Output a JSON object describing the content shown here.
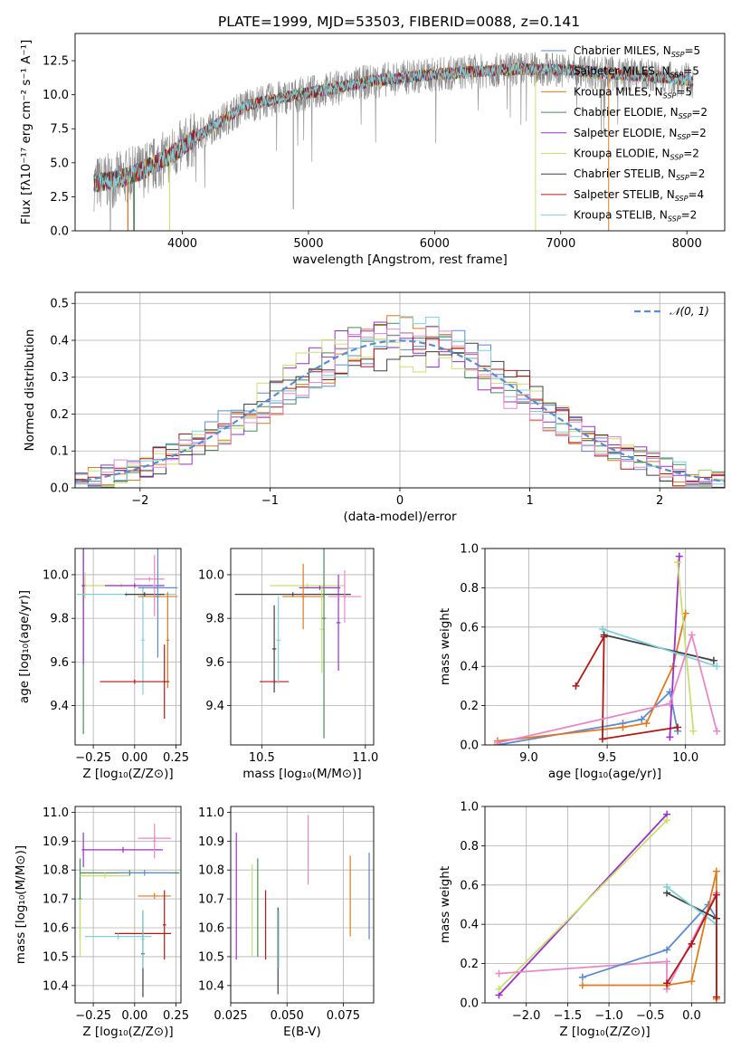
{
  "figure": {
    "title": "PLATE=1999, MJD=53503, FIBERID=0088, z=0.141"
  },
  "chart_data": [
    {
      "id": "spectrum",
      "type": "line",
      "title": "PLATE=1999, MJD=53503, FIBERID=0088, z=0.141",
      "xlabel": "wavelength [Angstrom, rest frame]",
      "ylabel": "Flux [fλ10⁻¹⁷ erg cm⁻² s⁻¹ A⁻¹]",
      "xlim": [
        3150,
        8300
      ],
      "ylim": [
        0,
        14.5
      ],
      "xticks": [
        4000,
        5000,
        6000,
        7000,
        8000
      ],
      "yticks": [
        0.0,
        2.5,
        5.0,
        7.5,
        10.0,
        12.5
      ],
      "grid": false,
      "legend_position": "top-right",
      "continuum": [
        [
          3300,
          3.5
        ],
        [
          3500,
          3.8
        ],
        [
          3700,
          4.5
        ],
        [
          3900,
          5.5
        ],
        [
          4050,
          6.5
        ],
        [
          4300,
          8.0
        ],
        [
          4500,
          9.2
        ],
        [
          4800,
          9.8
        ],
        [
          5100,
          10.3
        ],
        [
          5500,
          11.0
        ],
        [
          5900,
          11.4
        ],
        [
          6300,
          11.7
        ],
        [
          6700,
          11.9
        ],
        [
          7100,
          11.8
        ],
        [
          7500,
          11.5
        ],
        [
          7900,
          11.2
        ],
        [
          8050,
          11.0
        ]
      ],
      "series": [
        {
          "name": "Chabrier MILES, N_SSP=5",
          "color": "#5b8bd0"
        },
        {
          "name": "Salpeter MILES, N_SSP=5",
          "color": "#8a8a8a"
        },
        {
          "name": "Kroupa MILES, N_SSP=5",
          "color": "#e07a1f"
        },
        {
          "name": "Chabrier ELODIE, N_SSP=2",
          "color": "#4a8a5a"
        },
        {
          "name": "Salpeter ELODIE, N_SSP=2",
          "color": "#9b30c8"
        },
        {
          "name": "Kroupa ELODIE, N_SSP=2",
          "color": "#c8e070"
        },
        {
          "name": "Chabrier STELIB, N_SSP=2",
          "color": "#404040"
        },
        {
          "name": "Salpeter STELIB, N_SSP=4",
          "color": "#b01818"
        },
        {
          "name": "Kroupa STELIB, N_SSP=2",
          "color": "#80d0d8"
        }
      ]
    },
    {
      "id": "residuals",
      "type": "line",
      "xlabel": "(data-model)/error",
      "ylabel": "Normed distribution",
      "xlim": [
        -2.5,
        2.5
      ],
      "ylim": [
        0,
        0.53
      ],
      "xticks": [
        -2,
        -1,
        0,
        1,
        2
      ],
      "yticks": [
        0.0,
        0.1,
        0.2,
        0.3,
        0.4,
        0.5
      ],
      "grid": true,
      "legend": "𝒩(0, 1)",
      "legend_position": "top-right",
      "histogram_colors": [
        "#5b8bd0",
        "#e07a1f",
        "#4a8a5a",
        "#9b30c8",
        "#c8e070",
        "#404040",
        "#b01818",
        "#80d0d8",
        "#e888c8"
      ]
    },
    {
      "id": "age_vs_Z",
      "type": "scatter",
      "xlabel": "Z [log₁₀(Z/Z⊙)]",
      "ylabel": "age  [log₁₀(age/yr)]",
      "xlim": [
        -0.36,
        0.28
      ],
      "ylim": [
        9.22,
        10.12
      ],
      "xticks": [
        -0.25,
        0.0,
        0.25
      ],
      "xticklabels": [
        "−0.25",
        "0.00",
        "0.25"
      ],
      "yticks": [
        9.4,
        9.6,
        9.8,
        10.0
      ],
      "grid": true,
      "points": [
        {
          "x": -0.3,
          "y": 9.95,
          "xerr": 0.01,
          "yerr": 0.06,
          "c": "#c8e070"
        },
        {
          "x": -0.31,
          "y": 9.95,
          "xerr": 0.01,
          "yerr": 0.68,
          "c": "#4a8a5a"
        },
        {
          "x": -0.31,
          "y": 9.95,
          "xerr": 0.01,
          "yerr": 0.36,
          "c": "#9b30c8"
        },
        {
          "x": -0.08,
          "y": 9.95,
          "xerr": 0.22,
          "yerr": 0.01,
          "c": "#c8e070"
        },
        {
          "x": 0.0,
          "y": 9.95,
          "xerr": 0.18,
          "yerr": 0.01,
          "c": "#9b30c8"
        },
        {
          "x": -0.05,
          "y": 9.91,
          "xerr": 0.3,
          "yerr": 0.01,
          "c": "#80d0d8"
        },
        {
          "x": 0.05,
          "y": 9.7,
          "xerr": 0.01,
          "yerr": 0.25,
          "c": "#80d0d8"
        },
        {
          "x": 0.06,
          "y": 9.91,
          "xerr": 0.12,
          "yerr": 0.01,
          "c": "#404040"
        },
        {
          "x": 0.09,
          "y": 9.98,
          "xerr": 0.09,
          "yerr": 0.01,
          "c": "#e888c8"
        },
        {
          "x": 0.12,
          "y": 9.95,
          "xerr": 0.01,
          "yerr": 0.14,
          "c": "#e888c8"
        },
        {
          "x": 0.14,
          "y": 9.94,
          "xerr": 0.12,
          "yerr": 0.01,
          "c": "#5b8bd0"
        },
        {
          "x": 0.14,
          "y": 9.9,
          "xerr": 0.12,
          "yerr": 0.01,
          "c": "#e07a1f"
        },
        {
          "x": 0.14,
          "y": 9.9,
          "xerr": 0.01,
          "yerr": 0.28,
          "c": "#5b8bd0"
        },
        {
          "x": 0.2,
          "y": 9.7,
          "xerr": 0.01,
          "yerr": 0.22,
          "c": "#e07a1f"
        },
        {
          "x": 0.0,
          "y": 9.51,
          "xerr": 0.21,
          "yerr": 0.01,
          "c": "#b01818"
        },
        {
          "x": 0.18,
          "y": 9.51,
          "xerr": 0.01,
          "yerr": 0.17,
          "c": "#b01818"
        }
      ]
    },
    {
      "id": "age_vs_mass",
      "type": "scatter",
      "xlabel": "mass [log₁₀(M/M⊙)]",
      "ylabel": "",
      "xlim": [
        10.35,
        11.04
      ],
      "ylim": [
        9.22,
        10.12
      ],
      "xticks": [
        10.5,
        11.0
      ],
      "yticks": [
        9.4,
        9.6,
        9.8,
        10.0
      ],
      "grid": true,
      "points": [
        {
          "x": 10.65,
          "y": 9.91,
          "xerr": 0.28,
          "yerr": 0.01,
          "c": "#404040"
        },
        {
          "x": 10.72,
          "y": 9.95,
          "xerr": 0.18,
          "yerr": 0.01,
          "c": "#c8e070"
        },
        {
          "x": 10.78,
          "y": 9.94,
          "xerr": 0.1,
          "yerr": 0.01,
          "c": "#9b30c8"
        },
        {
          "x": 10.7,
          "y": 9.9,
          "xerr": 0.1,
          "yerr": 0.01,
          "c": "#e07a1f"
        },
        {
          "x": 10.56,
          "y": 9.66,
          "xerr": 0.01,
          "yerr": 0.2,
          "c": "#404040"
        },
        {
          "x": 10.56,
          "y": 9.51,
          "xerr": 0.07,
          "yerr": 0.01,
          "c": "#b01818"
        },
        {
          "x": 10.58,
          "y": 9.7,
          "xerr": 0.01,
          "yerr": 0.2,
          "c": "#80d0d8"
        },
        {
          "x": 10.7,
          "y": 9.9,
          "xerr": 0.01,
          "yerr": 0.15,
          "c": "#e07a1f"
        },
        {
          "x": 10.79,
          "y": 9.75,
          "xerr": 0.01,
          "yerr": 0.2,
          "c": "#c8e070"
        },
        {
          "x": 10.8,
          "y": 9.8,
          "xerr": 0.01,
          "yerr": 0.55,
          "c": "#4a8a5a"
        },
        {
          "x": 10.87,
          "y": 9.78,
          "xerr": 0.01,
          "yerr": 0.22,
          "c": "#9b30c8"
        },
        {
          "x": 10.9,
          "y": 9.9,
          "xerr": 0.08,
          "yerr": 0.01,
          "c": "#e888c8"
        },
        {
          "x": 10.9,
          "y": 9.9,
          "xerr": 0.01,
          "yerr": 0.12,
          "c": "#e888c8"
        }
      ]
    },
    {
      "id": "weight_vs_age",
      "type": "line",
      "xlabel": "age  [log₁₀(age/yr)]",
      "ylabel": "mass weight",
      "xlim": [
        8.72,
        10.25
      ],
      "ylim": [
        0,
        1.0
      ],
      "xticks": [
        9.0,
        9.5,
        10.0
      ],
      "yticks": [
        0.0,
        0.2,
        0.4,
        0.6,
        0.8,
        1.0
      ],
      "grid": true,
      "series": [
        {
          "c": "#5b8bd0",
          "x": [
            8.8,
            9.6,
            9.72,
            9.9,
            9.95
          ],
          "y": [
            0.0,
            0.11,
            0.13,
            0.27,
            0.07
          ]
        },
        {
          "c": "#e07a1f",
          "x": [
            8.8,
            9.6,
            9.75,
            9.92,
            10.0
          ],
          "y": [
            0.02,
            0.09,
            0.11,
            0.4,
            0.67
          ]
        },
        {
          "c": "#9b30c8",
          "x": [
            9.9,
            9.96
          ],
          "y": [
            0.04,
            0.96
          ]
        },
        {
          "c": "#c8e070",
          "x": [
            9.95,
            10.05
          ],
          "y": [
            0.93,
            0.07
          ]
        },
        {
          "c": "#404040",
          "x": [
            9.48,
            10.18
          ],
          "y": [
            0.56,
            0.43
          ]
        },
        {
          "c": "#b01818",
          "x": [
            9.3,
            9.48,
            9.47,
            9.95
          ],
          "y": [
            0.3,
            0.55,
            0.03,
            0.09
          ]
        },
        {
          "c": "#80d0d8",
          "x": [
            9.47,
            10.2
          ],
          "y": [
            0.59,
            0.4
          ]
        },
        {
          "c": "#e888c8",
          "x": [
            8.8,
            9.9,
            10.04,
            10.2
          ],
          "y": [
            0.01,
            0.21,
            0.56,
            0.07
          ]
        }
      ]
    },
    {
      "id": "mass_vs_Z",
      "type": "scatter",
      "xlabel": "Z [log₁₀(Z/Z⊙)]",
      "ylabel": "mass [log₁₀(M/M⊙)]",
      "xlim": [
        -0.36,
        0.28
      ],
      "ylim": [
        10.34,
        11.02
      ],
      "xticks": [
        -0.25,
        0.0,
        0.25
      ],
      "xticklabels": [
        "−0.25",
        "0.00",
        "0.25"
      ],
      "yticks": [
        10.4,
        10.5,
        10.6,
        10.7,
        10.8,
        10.9,
        11.0
      ],
      "grid": true,
      "points": [
        {
          "x": -0.31,
          "y": 10.87,
          "xerr": 0.01,
          "yerr": 0.06,
          "c": "#9b30c8"
        },
        {
          "x": -0.07,
          "y": 10.87,
          "xerr": 0.24,
          "yerr": 0.01,
          "c": "#9b30c8"
        },
        {
          "x": -0.33,
          "y": 10.7,
          "xerr": 0.01,
          "yerr": 0.14,
          "c": "#4a8a5a"
        },
        {
          "x": -0.03,
          "y": 10.79,
          "xerr": 0.3,
          "yerr": 0.01,
          "c": "#4a8a5a"
        },
        {
          "x": -0.18,
          "y": 10.78,
          "xerr": 0.15,
          "yerr": 0.01,
          "c": "#c8e070"
        },
        {
          "x": -0.33,
          "y": 10.6,
          "xerr": 0.01,
          "yerr": 0.1,
          "c": "#c8e070"
        },
        {
          "x": 0.06,
          "y": 10.79,
          "xerr": 0.16,
          "yerr": 0.01,
          "c": "#5b8bd0"
        },
        {
          "x": 0.12,
          "y": 10.91,
          "xerr": 0.1,
          "yerr": 0.01,
          "c": "#e888c8"
        },
        {
          "x": 0.12,
          "y": 10.9,
          "xerr": 0.01,
          "yerr": 0.06,
          "c": "#e888c8"
        },
        {
          "x": 0.12,
          "y": 10.71,
          "xerr": 0.1,
          "yerr": 0.01,
          "c": "#e07a1f"
        },
        {
          "x": 0.18,
          "y": 10.61,
          "xerr": 0.01,
          "yerr": 0.12,
          "c": "#b01818"
        },
        {
          "x": 0.05,
          "y": 10.58,
          "xerr": 0.17,
          "yerr": 0.01,
          "c": "#b01818"
        },
        {
          "x": -0.1,
          "y": 10.57,
          "xerr": 0.2,
          "yerr": 0.01,
          "c": "#80d0d8"
        },
        {
          "x": 0.05,
          "y": 10.51,
          "xerr": 0.01,
          "yerr": 0.15,
          "c": "#404040"
        },
        {
          "x": 0.05,
          "y": 10.56,
          "xerr": 0.01,
          "yerr": 0.1,
          "c": "#80d0d8"
        }
      ]
    },
    {
      "id": "mass_vs_EBV",
      "type": "scatter",
      "xlabel": "E(B-V)",
      "ylabel": "",
      "xlim": [
        0.025,
        0.0885
      ],
      "ylim": [
        10.34,
        11.02
      ],
      "xticks": [
        0.025,
        0.05,
        0.075
      ],
      "xticklabels": [
        "0.025",
        "0.050",
        "0.075"
      ],
      "yticks": [
        10.4,
        10.5,
        10.6,
        10.7,
        10.8,
        10.9,
        11.0
      ],
      "grid": true,
      "points": [
        {
          "x": 0.0275,
          "y": 10.71,
          "xerr": 0,
          "yerr": 0.22,
          "c": "#9b30c8"
        },
        {
          "x": 0.0345,
          "y": 10.66,
          "xerr": 0,
          "yerr": 0.16,
          "c": "#c8e070"
        },
        {
          "x": 0.037,
          "y": 10.67,
          "xerr": 0,
          "yerr": 0.17,
          "c": "#4a8a5a"
        },
        {
          "x": 0.0405,
          "y": 10.61,
          "xerr": 0,
          "yerr": 0.12,
          "c": "#b01818"
        },
        {
          "x": 0.046,
          "y": 10.52,
          "xerr": 0,
          "yerr": 0.15,
          "c": "#404040"
        },
        {
          "x": 0.0463,
          "y": 10.56,
          "xerr": 0,
          "yerr": 0.1,
          "c": "#80d0d8"
        },
        {
          "x": 0.0594,
          "y": 10.87,
          "xerr": 0,
          "yerr": 0.12,
          "c": "#e888c8"
        },
        {
          "x": 0.0781,
          "y": 10.71,
          "xerr": 0,
          "yerr": 0.14,
          "c": "#e07a1f"
        },
        {
          "x": 0.0865,
          "y": 10.71,
          "xerr": 0,
          "yerr": 0.15,
          "c": "#5b8bd0"
        }
      ]
    },
    {
      "id": "weight_vs_Z",
      "type": "line",
      "xlabel": "Z [log₁₀(Z/Z⊙)]",
      "ylabel": "mass weight",
      "xlim": [
        -2.5,
        0.4
      ],
      "ylim": [
        0,
        1.0
      ],
      "xticks": [
        -2.0,
        -1.5,
        -1.0,
        -0.5,
        0.0
      ],
      "xticklabels": [
        "−2.0",
        "−1.5",
        "−1.0",
        "−0.5",
        "0.0"
      ],
      "yticks": [
        0.0,
        0.2,
        0.4,
        0.6,
        0.8,
        1.0
      ],
      "grid": true,
      "series": [
        {
          "c": "#9b30c8",
          "x": [
            -2.33,
            -0.3
          ],
          "y": [
            0.04,
            0.96
          ]
        },
        {
          "c": "#c8e070",
          "x": [
            -2.33,
            -0.3
          ],
          "y": [
            0.07,
            0.93
          ]
        },
        {
          "c": "#e888c8",
          "x": [
            -2.33,
            -0.3,
            -0.3,
            0.3
          ],
          "y": [
            0.15,
            0.21,
            0.07,
            0.56
          ]
        },
        {
          "c": "#5b8bd0",
          "x": [
            -1.32,
            -0.3,
            0.2,
            0.3
          ],
          "y": [
            0.13,
            0.27,
            0.5,
            0.43
          ]
        },
        {
          "c": "#e07a1f",
          "x": [
            -1.32,
            -0.3,
            0.0,
            0.3,
            0.3
          ],
          "y": [
            0.09,
            0.09,
            0.11,
            0.67,
            0.02
          ]
        },
        {
          "c": "#404040",
          "x": [
            -0.3,
            0.3
          ],
          "y": [
            0.56,
            0.43
          ]
        },
        {
          "c": "#80d0d8",
          "x": [
            -0.3,
            0.3
          ],
          "y": [
            0.59,
            0.4
          ]
        },
        {
          "c": "#b01818",
          "x": [
            -0.3,
            0.0,
            0.3,
            0.3
          ],
          "y": [
            0.1,
            0.3,
            0.55,
            0.03
          ]
        }
      ]
    }
  ]
}
